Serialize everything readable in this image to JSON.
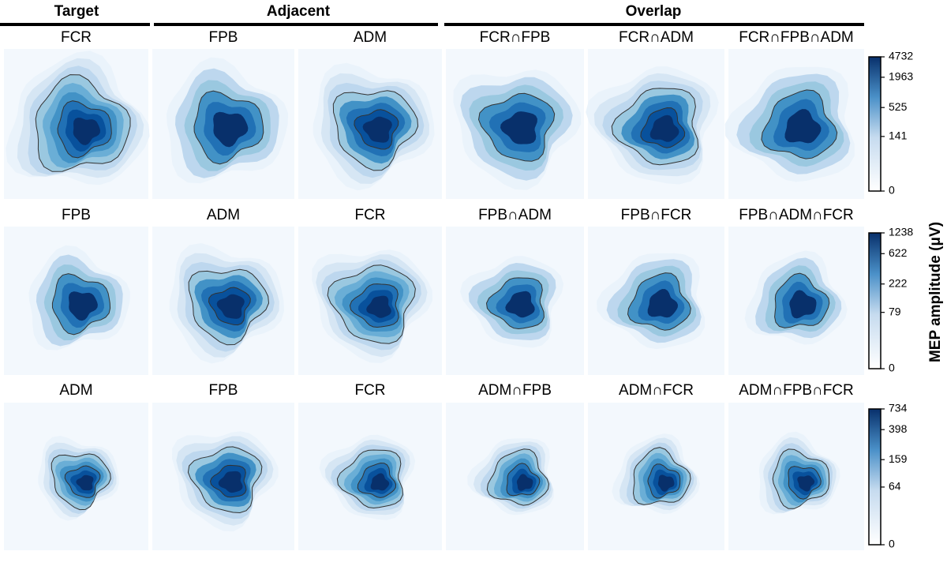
{
  "groups": [
    "Target",
    "Adjacent",
    "Overlap"
  ],
  "rows": [
    {
      "panels": [
        "FCR",
        "FPB",
        "ADM",
        "FCR∩FPB",
        "FCR∩ADM",
        "FCR∩FPB∩ADM"
      ],
      "colorbar": {
        "lim": [
          0,
          4732
        ],
        "ticks": [
          0,
          141,
          525,
          1963,
          4732
        ]
      }
    },
    {
      "panels": [
        "FPB",
        "ADM",
        "FCR",
        "FPB∩ADM",
        "FPB∩FCR",
        "FPB∩ADM∩FCR"
      ],
      "colorbar": {
        "lim": [
          0,
          1238
        ],
        "ticks": [
          0,
          79,
          222,
          622,
          1238
        ]
      }
    },
    {
      "panels": [
        "ADM",
        "FPB",
        "FCR",
        "ADM∩FPB",
        "ADM∩FCR",
        "ADM∩FPB∩FCR"
      ],
      "colorbar": {
        "lim": [
          0,
          734
        ],
        "ticks": [
          0,
          64,
          159,
          398,
          734
        ]
      }
    }
  ],
  "colorbar_label": "MEP amplitude (μV)"
}
